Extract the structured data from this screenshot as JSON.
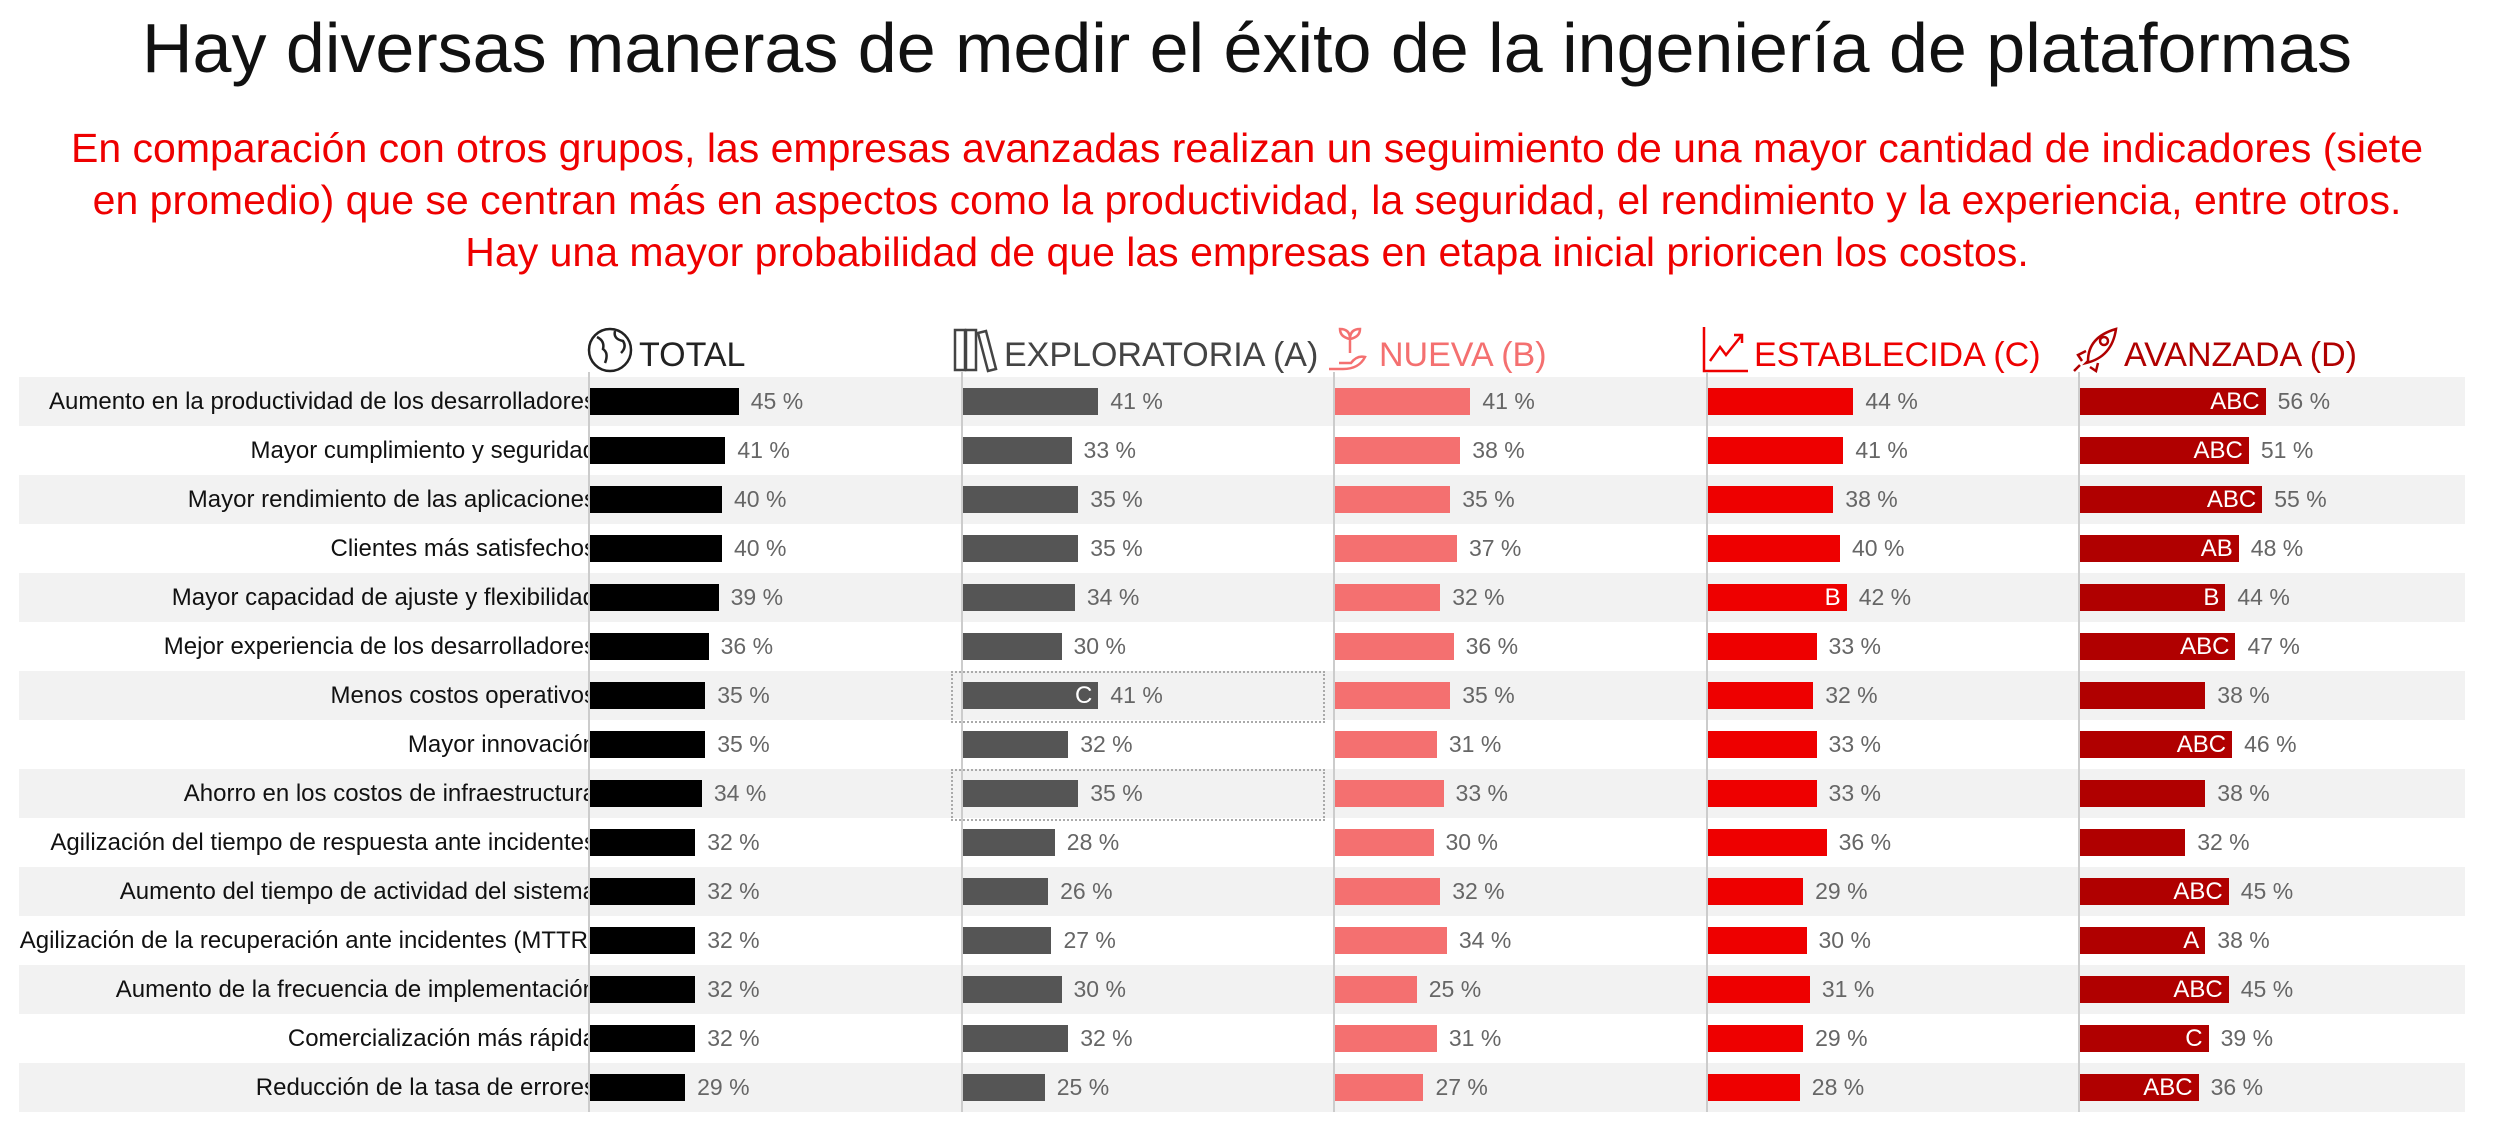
{
  "title": "Hay diversas maneras de medir el éxito de la ingeniería de plataformas",
  "subtitle": [
    "En comparación con otros grupos, las empresas avanzadas realizan un seguimiento de una mayor cantidad de indicadores (siete",
    "en promedio) que se centran más en aspectos como la productividad, la seguridad, el rendimiento y la experiencia, entre otros.",
    "Hay una mayor probabilidad de que las empresas en etapa inicial prioricen los costos."
  ],
  "chart_data": {
    "type": "bar",
    "orientation": "horizontal",
    "unit": "%",
    "categories": [
      "Aumento en la productividad de los desarrolladores",
      "Mayor cumplimiento y seguridad",
      "Mayor rendimiento de las aplicaciones",
      "Clientes más satisfechos",
      "Mayor capacidad de ajuste y flexibilidad",
      "Mejor experiencia de los desarrolladores",
      "Menos costos operativos",
      "Mayor innovación",
      "Ahorro en los costos de infraestructura",
      "Agilización del tiempo de respuesta ante incidentes",
      "Aumento del tiempo de actividad del sistema",
      "Agilización de la recuperación ante incidentes (MTTR)",
      "Aumento de la frecuencia de implementación",
      "Comercialización más rápida",
      "Reducción de la tasa de errores"
    ],
    "series": [
      {
        "name": "TOTAL",
        "icon": "globe-icon",
        "color": "#000000",
        "header_color": "#222222",
        "values": [
          45,
          41,
          40,
          40,
          39,
          36,
          35,
          35,
          34,
          32,
          32,
          32,
          32,
          32,
          29
        ],
        "sig": [
          "",
          "",
          "",
          "",
          "",
          "",
          "",
          "",
          "",
          "",
          "",
          "",
          "",
          "",
          ""
        ]
      },
      {
        "name": "EXPLORATORIA (A)",
        "icon": "books-icon",
        "color": "#555555",
        "header_color": "#444444",
        "values": [
          41,
          33,
          35,
          35,
          34,
          30,
          41,
          32,
          35,
          28,
          26,
          27,
          30,
          32,
          25
        ],
        "sig": [
          "",
          "",
          "",
          "",
          "",
          "",
          "C",
          "",
          "",
          "",
          "",
          "",
          "",
          "",
          ""
        ],
        "highlighted": [
          6,
          8
        ]
      },
      {
        "name": "NUEVA (B)",
        "icon": "sprout-hand-icon",
        "color": "#f47070",
        "header_color": "#f47070",
        "values": [
          41,
          38,
          35,
          37,
          32,
          36,
          35,
          31,
          33,
          30,
          32,
          34,
          25,
          31,
          27
        ],
        "sig": [
          "",
          "",
          "",
          "",
          "",
          "",
          "",
          "",
          "",
          "",
          "",
          "",
          "",
          "",
          ""
        ]
      },
      {
        "name": "ESTABLECIDA (C)",
        "icon": "growth-chart-icon",
        "color": "#ee0000",
        "header_color": "#ee0000",
        "values": [
          44,
          41,
          38,
          40,
          42,
          33,
          32,
          33,
          33,
          36,
          29,
          30,
          31,
          29,
          28
        ],
        "sig": [
          "",
          "",
          "",
          "",
          "B",
          "",
          "",
          "",
          "",
          "",
          "",
          "",
          "",
          "",
          ""
        ]
      },
      {
        "name": "AVANZADA (D)",
        "icon": "rocket-icon",
        "color": "#b00000",
        "header_color": "#b00000",
        "values": [
          56,
          51,
          55,
          48,
          44,
          47,
          38,
          46,
          38,
          32,
          45,
          38,
          45,
          39,
          36
        ],
        "sig": [
          "ABC",
          "ABC",
          "ABC",
          "AB",
          "B",
          "ABC",
          "",
          "ABC",
          "",
          "",
          "ABC",
          "A",
          "ABC",
          "C",
          "ABC"
        ]
      }
    ]
  }
}
